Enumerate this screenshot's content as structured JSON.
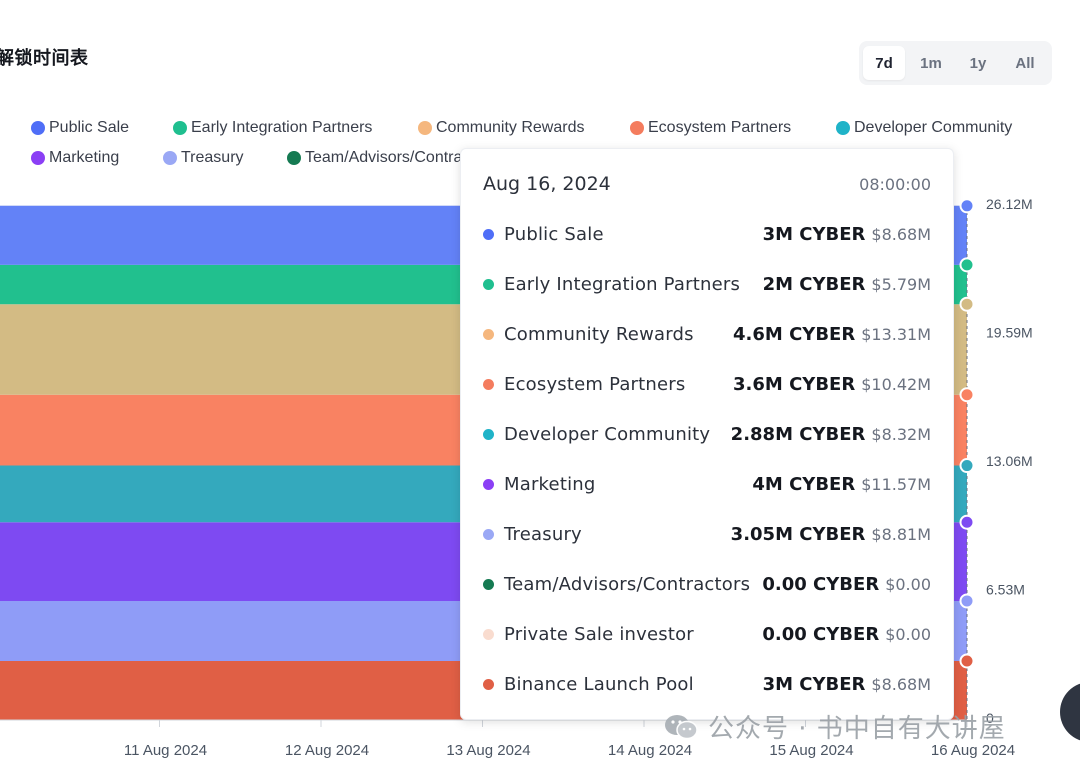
{
  "page": {
    "title": "解锁时间表",
    "range_options": [
      "7d",
      "1m",
      "1y",
      "All"
    ],
    "active_range": "7d"
  },
  "legend": [
    {
      "name": "Public Sale",
      "color": "#4f6ef7"
    },
    {
      "name": "Early Integration Partners",
      "color": "#1fbf8f"
    },
    {
      "name": "Community Rewards",
      "color": "#f5b77e"
    },
    {
      "name": "Ecosystem Partners",
      "color": "#f47c5e"
    },
    {
      "name": "Developer Community",
      "color": "#1fb3c8"
    },
    {
      "name": "Marketing",
      "color": "#8b3ff5"
    },
    {
      "name": "Treasury",
      "color": "#9aa8f5"
    },
    {
      "name": "Team/Advisors/Contra",
      "color": "#157a52"
    }
  ],
  "chart_data": {
    "type": "area",
    "stacked": true,
    "x": [
      "11 Aug 2024",
      "12 Aug 2024",
      "13 Aug 2024",
      "14 Aug 2024",
      "15 Aug 2024",
      "16 Aug 2024"
    ],
    "y_ticks": [
      "0",
      "6.53M",
      "13.06M",
      "19.59M",
      "26.12M"
    ],
    "ylim": [
      0,
      26120000
    ],
    "series": [
      {
        "name": "Binance Launch Pool",
        "color": "#e05f45",
        "values": [
          3000000,
          3000000,
          3000000,
          3000000,
          3000000,
          3000000
        ]
      },
      {
        "name": "Private Sale investor",
        "color": "#f8dcd2",
        "values": [
          0,
          0,
          0,
          0,
          0,
          0
        ]
      },
      {
        "name": "Team/Advisors/Contractors",
        "color": "#157a52",
        "values": [
          0,
          0,
          0,
          0,
          0,
          0
        ]
      },
      {
        "name": "Treasury",
        "color": "#8f9cf7",
        "values": [
          3050000,
          3050000,
          3050000,
          3050000,
          3050000,
          3050000
        ]
      },
      {
        "name": "Marketing",
        "color": "#7e4af2",
        "values": [
          4000000,
          4000000,
          4000000,
          4000000,
          4000000,
          4000000
        ]
      },
      {
        "name": "Developer Community",
        "color": "#34a9bd",
        "values": [
          2880000,
          2880000,
          2880000,
          2880000,
          2880000,
          2880000
        ]
      },
      {
        "name": "Ecosystem Partners",
        "color": "#f98262",
        "values": [
          3600000,
          3600000,
          3600000,
          3600000,
          3600000,
          3600000
        ]
      },
      {
        "name": "Community Rewards",
        "color": "#d3bb84",
        "values": [
          4600000,
          4600000,
          4600000,
          4600000,
          4600000,
          4600000
        ]
      },
      {
        "name": "Early Integration Partners",
        "color": "#21c08e",
        "values": [
          2000000,
          2000000,
          2000000,
          2000000,
          2000000,
          2000000
        ]
      },
      {
        "name": "Public Sale",
        "color": "#6382f7",
        "values": [
          3000000,
          3000000,
          3000000,
          3000000,
          3000000,
          3000000
        ]
      }
    ]
  },
  "tooltip": {
    "date": "Aug 16, 2024",
    "time": "08:00:00",
    "rows": [
      {
        "name": "Public Sale",
        "amount": "3M CYBER",
        "usd": "$8.68M",
        "color": "#4f6ef7"
      },
      {
        "name": "Early Integration Partners",
        "amount": "2M CYBER",
        "usd": "$5.79M",
        "color": "#1fbf8f"
      },
      {
        "name": "Community Rewards",
        "amount": "4.6M CYBER",
        "usd": "$13.31M",
        "color": "#f5b77e"
      },
      {
        "name": "Ecosystem Partners",
        "amount": "3.6M CYBER",
        "usd": "$10.42M",
        "color": "#f47c5e"
      },
      {
        "name": "Developer Community",
        "amount": "2.88M CYBER",
        "usd": "$8.32M",
        "color": "#1fb3c8"
      },
      {
        "name": "Marketing",
        "amount": "4M CYBER",
        "usd": "$11.57M",
        "color": "#8b3ff5"
      },
      {
        "name": "Treasury",
        "amount": "3.05M CYBER",
        "usd": "$8.81M",
        "color": "#9aa8f5"
      },
      {
        "name": "Team/Advisors/Contractors",
        "amount": "0.00 CYBER",
        "usd": "$0.00",
        "color": "#157a52"
      },
      {
        "name": "Private Sale investor",
        "amount": "0.00 CYBER",
        "usd": "$0.00",
        "color": "#f9dccf"
      },
      {
        "name": "Binance Launch Pool",
        "amount": "3M CYBER",
        "usd": "$8.68M",
        "color": "#e05f45"
      }
    ]
  },
  "watermark": {
    "text": "公众号 · 书中自有大讲屋",
    "icon": "wechat-icon"
  }
}
